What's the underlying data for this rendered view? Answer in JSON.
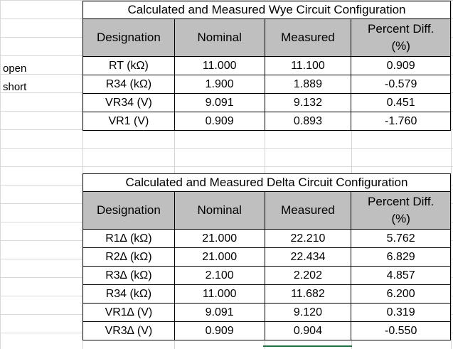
{
  "side_labels": [
    "open",
    "short"
  ],
  "wye": {
    "title": "Calculated and Measured Wye Circuit Configuration",
    "headers": [
      "Designation",
      "Nominal",
      "Measured",
      "Percent Diff.",
      "(%)"
    ],
    "rows": [
      {
        "designation": "RT (kΩ)",
        "nominal": "11.000",
        "measured": "11.100",
        "pct": "0.909"
      },
      {
        "designation": "R34 (kΩ)",
        "nominal": "1.900",
        "measured": "1.889",
        "pct": "-0.579"
      },
      {
        "designation": "VR34 (V)",
        "nominal": "9.091",
        "measured": "9.132",
        "pct": "0.451"
      },
      {
        "designation": "VR1 (V)",
        "nominal": "0.909",
        "measured": "0.893",
        "pct": "-1.760"
      }
    ]
  },
  "delta": {
    "title": "Calculated and Measured Delta Circuit Configuration",
    "headers": [
      "Designation",
      "Nominal",
      "Measured",
      "Percent Diff.",
      "(%)"
    ],
    "rows": [
      {
        "designation": "R1∆ (kΩ)",
        "nominal": "21.000",
        "measured": "22.210",
        "pct": "5.762"
      },
      {
        "designation": "R2∆ (kΩ)",
        "nominal": "21.000",
        "measured": "22.434",
        "pct": "6.829"
      },
      {
        "designation": "R3∆ (kΩ)",
        "nominal": "2.100",
        "measured": "2.202",
        "pct": "4.857"
      },
      {
        "designation": "R34 (kΩ)",
        "nominal": "11.000",
        "measured": "11.682",
        "pct": "6.200"
      },
      {
        "designation": "VR1∆ (V)",
        "nominal": "9.091",
        "measured": "9.120",
        "pct": "0.319"
      },
      {
        "designation": "VR3∆ (V)",
        "nominal": "0.909",
        "measured": "0.904",
        "pct": "-0.550"
      }
    ]
  },
  "colors": {
    "header_fill": "#bfbfbf",
    "selection_green": "#217346",
    "gridline": "#d8d8d8"
  }
}
